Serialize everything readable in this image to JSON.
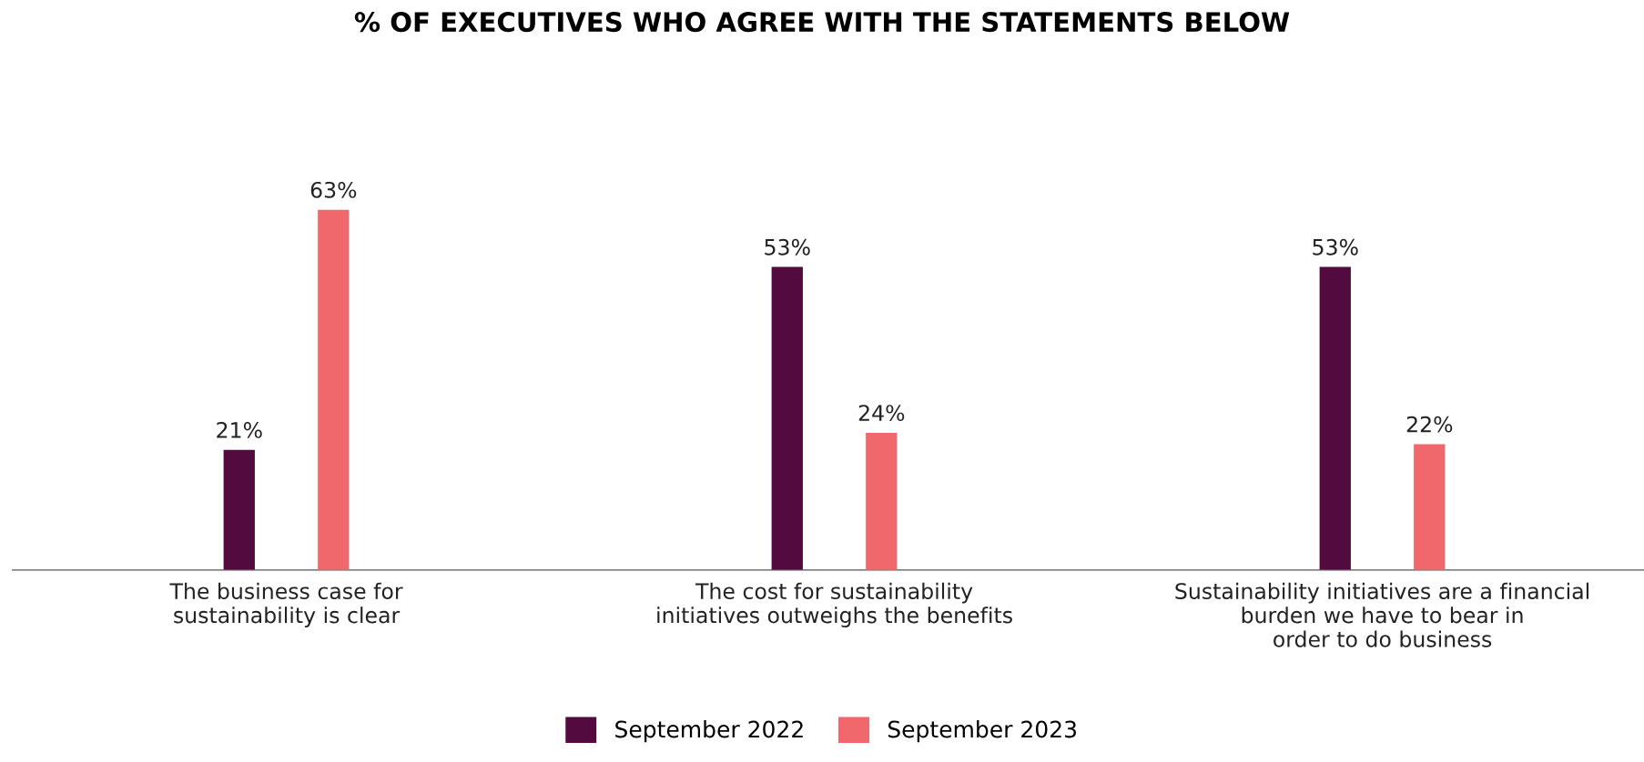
{
  "chart_data": {
    "type": "bar",
    "title": "% OF EXECUTIVES WHO AGREE WITH THE STATEMENTS BELOW",
    "categories": [
      "The business case for\nsustainability is clear",
      "The cost for sustainability\ninitiatives outweighs the benefits",
      "Sustainability initiatives are a financial\nburden we have to bear in\norder to do business"
    ],
    "series": [
      {
        "name": "September 2022",
        "color": "#520a3f",
        "values": [
          21,
          53,
          53
        ],
        "value_labels": [
          "21%",
          "53%",
          "53%"
        ]
      },
      {
        "name": "September 2023",
        "color": "#f0676c",
        "values": [
          63,
          24,
          22
        ],
        "value_labels": [
          "63%",
          "24%",
          "22%"
        ]
      }
    ],
    "legend": "bottom",
    "grid": false
  }
}
